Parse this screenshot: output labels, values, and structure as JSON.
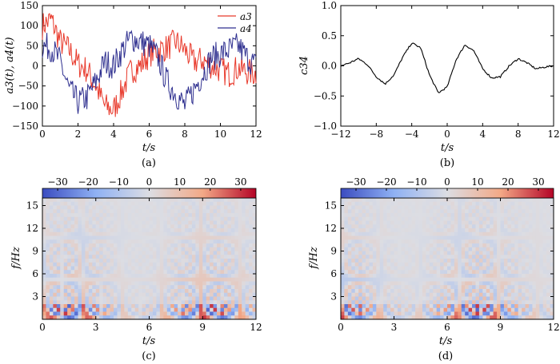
{
  "panels": {
    "a": {
      "caption": "(a)",
      "xlabel": "t/s",
      "ylabel": "a3(t), a4(t)",
      "legend": [
        "a3",
        "a4"
      ]
    },
    "b": {
      "caption": "(b)",
      "xlabel": "t/s",
      "ylabel": "c34"
    },
    "c": {
      "caption": "(c)",
      "xlabel": "t/s",
      "ylabel": "f/Hz"
    },
    "d": {
      "caption": "(d)",
      "xlabel": "t/s",
      "ylabel": "f/Hz"
    }
  },
  "colors": {
    "a3": "#e8392b",
    "a4": "#2e2f8f",
    "c34": "#000000",
    "colormap": [
      "#3b4cc0",
      "#8fb1f4",
      "#dcdde3",
      "#f3a987",
      "#b40426"
    ]
  },
  "chart_data": [
    {
      "type": "line",
      "panel": "a",
      "xlim": [
        0,
        12
      ],
      "ylim": [
        -150,
        150
      ],
      "xticks": [
        0,
        2,
        4,
        6,
        8,
        10,
        12
      ],
      "yticks": [
        -150,
        -100,
        -50,
        0,
        50,
        100,
        150
      ],
      "series": [
        {
          "name": "a3",
          "x": [
            0,
            0.5,
            1,
            1.5,
            2,
            2.5,
            3,
            3.5,
            4,
            4.5,
            5,
            5.5,
            6,
            6.5,
            7,
            7.5,
            8,
            8.5,
            9,
            9.5,
            10,
            10.5,
            11,
            11.5,
            12
          ],
          "y": [
            100,
            115,
            60,
            40,
            5,
            -10,
            -50,
            -100,
            -110,
            -60,
            -10,
            0,
            30,
            40,
            45,
            60,
            40,
            10,
            15,
            0,
            -10,
            -20,
            -5,
            -15,
            -20
          ]
        },
        {
          "name": "a4",
          "x": [
            0,
            0.5,
            1,
            1.5,
            2,
            2.5,
            3,
            3.5,
            4,
            4.5,
            5,
            5.5,
            6,
            6.5,
            7,
            7.5,
            8,
            8.5,
            9,
            9.5,
            10,
            10.5,
            11,
            11.5,
            12
          ],
          "y": [
            50,
            45,
            10,
            -60,
            -90,
            -80,
            -40,
            10,
            0,
            40,
            70,
            60,
            50,
            20,
            -40,
            -70,
            -100,
            -60,
            -20,
            20,
            30,
            40,
            50,
            20,
            0
          ]
        }
      ]
    },
    {
      "type": "line",
      "panel": "b",
      "xlim": [
        -12,
        12
      ],
      "ylim": [
        -1.0,
        1.0
      ],
      "xticks": [
        -12,
        -8,
        -4,
        0,
        4,
        8,
        12
      ],
      "yticks": [
        -1.0,
        -0.5,
        0.0,
        0.5,
        1.0
      ],
      "series": [
        {
          "name": "c34",
          "x": [
            -12,
            -11,
            -10,
            -9,
            -8,
            -7,
            -6,
            -5,
            -4,
            -3,
            -2,
            -1,
            0,
            1,
            2,
            3,
            4,
            5,
            6,
            7,
            8,
            9,
            10,
            11,
            12
          ],
          "y": [
            0.0,
            0.05,
            0.12,
            0.02,
            -0.18,
            -0.3,
            -0.15,
            0.15,
            0.38,
            0.3,
            -0.15,
            -0.45,
            -0.35,
            0.1,
            0.35,
            0.25,
            -0.05,
            -0.2,
            -0.18,
            0.0,
            0.12,
            0.05,
            -0.05,
            -0.02,
            0.0
          ]
        }
      ]
    },
    {
      "type": "heatmap",
      "panel": "c",
      "xlim": [
        0,
        12
      ],
      "ylim": [
        0,
        16
      ],
      "xticks": [
        0,
        3,
        6,
        9,
        12
      ],
      "yticks": [
        3,
        6,
        9,
        12,
        15
      ],
      "colorbar": {
        "min": -35,
        "max": 35,
        "ticks": [
          -30,
          -20,
          -10,
          0,
          10,
          20,
          30
        ]
      }
    },
    {
      "type": "heatmap",
      "panel": "d",
      "xlim": [
        0,
        12
      ],
      "ylim": [
        0,
        16
      ],
      "xticks": [
        0,
        3,
        6,
        9,
        12
      ],
      "yticks": [
        3,
        6,
        9,
        12,
        15
      ],
      "colorbar": {
        "min": -35,
        "max": 35,
        "ticks": [
          -30,
          -20,
          -10,
          0,
          10,
          20,
          30
        ]
      }
    }
  ]
}
